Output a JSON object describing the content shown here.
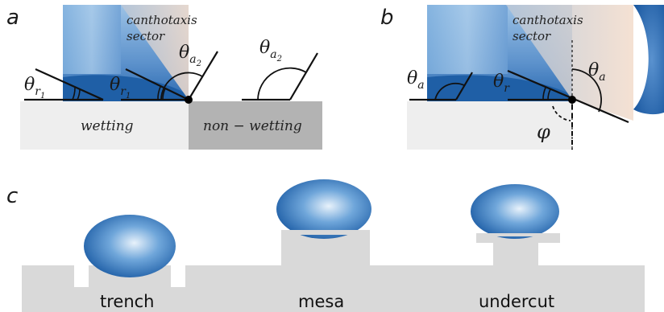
{
  "panel_a": {
    "letter": "a",
    "sector_line1": "canthotaxis",
    "sector_line2": "sector",
    "theta": "θ",
    "sub_r": "r",
    "sub_a": "a",
    "sub_1": "1",
    "sub_2": "2",
    "wetting_label": "wetting",
    "nonwetting_label": "non − wetting"
  },
  "panel_b": {
    "letter": "b",
    "sector_line1": "canthotaxis",
    "sector_line2": "sector",
    "theta": "θ",
    "sub_a": "a",
    "sub_r": "r",
    "phi_label": "φ"
  },
  "panel_c": {
    "letter": "c",
    "trench_label": "trench",
    "mesa_label": "mesa",
    "undercut_label": "undercut"
  },
  "colors": {
    "droplet_dark": "#1f5fa6",
    "droplet_light": "#cfe3f4",
    "substrate_light": "#eeeeee",
    "substrate_dark": "#b3b3b3",
    "substrate_c": "#d9d9d9",
    "sector": "#f6e2d2"
  }
}
